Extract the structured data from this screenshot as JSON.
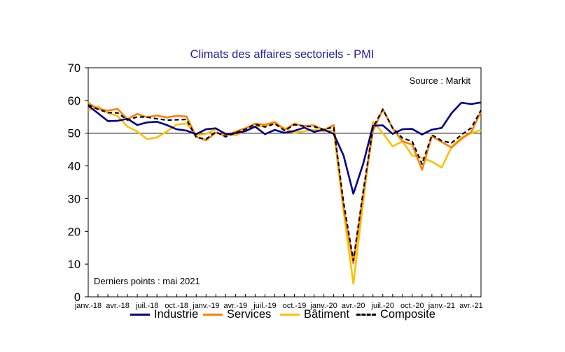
{
  "chart_data": {
    "type": "line",
    "title": "Climats des affaires sectoriels  - PMI",
    "source": "Source : Markit",
    "note": "Derniers points : mai 2021",
    "xlabel": "",
    "ylabel": "",
    "ylim": [
      0,
      70
    ],
    "yticks": [
      0,
      10,
      20,
      30,
      40,
      50,
      60,
      70
    ],
    "reference_line": 50,
    "x": [
      "janv.-18",
      "févr.-18",
      "mars-18",
      "avr.-18",
      "mai-18",
      "juin-18",
      "juil.-18",
      "août-18",
      "sept.-18",
      "oct.-18",
      "nov.-18",
      "déc.-18",
      "janv.-19",
      "févr.-19",
      "mars-19",
      "avr.-19",
      "mai-19",
      "juin-19",
      "juil.-19",
      "août-19",
      "sept.-19",
      "oct.-19",
      "nov.-19",
      "déc.-19",
      "janv.-20",
      "févr.-20",
      "mars-20",
      "avr.-20",
      "mai-20",
      "juin-20",
      "juil.-20",
      "août-20",
      "sept.-20",
      "oct.-20",
      "nov.-20",
      "déc.-20",
      "janv.-21",
      "févr.-21",
      "mars-21",
      "avr.-21",
      "mai-21"
    ],
    "tick_labels": [
      "janv.-18",
      "avr.-18",
      "juil.-18",
      "oct.-18",
      "janv.-19",
      "avr.-19",
      "juil.-19",
      "oct.-19",
      "janv.-20",
      "avr.-20",
      "juil.-20",
      "oct.-20",
      "janv.-21",
      "avr.-21"
    ],
    "series": [
      {
        "name": "Industrie",
        "color": "#00008b",
        "dash": "solid",
        "values": [
          58.4,
          56.1,
          53.7,
          53.8,
          54.4,
          52.5,
          53.3,
          53.5,
          52.5,
          51.2,
          50.8,
          49.7,
          51.2,
          51.5,
          49.7,
          50.0,
          50.6,
          52.0,
          49.7,
          51.0,
          50.1,
          50.7,
          51.7,
          50.4,
          51.1,
          49.8,
          43.2,
          31.5,
          40.6,
          52.3,
          52.4,
          49.8,
          51.2,
          51.3,
          49.6,
          51.1,
          51.6,
          56.1,
          59.3,
          58.9,
          59.4
        ]
      },
      {
        "name": "Services",
        "color": "#ff7f00",
        "dash": "solid",
        "values": [
          59.2,
          57.4,
          56.9,
          57.4,
          54.3,
          55.9,
          54.9,
          55.4,
          54.8,
          55.3,
          55.1,
          49.0,
          47.8,
          50.2,
          49.1,
          50.5,
          51.5,
          52.9,
          52.6,
          53.4,
          51.1,
          52.9,
          52.2,
          52.4,
          51.0,
          52.5,
          27.4,
          10.2,
          31.1,
          50.7,
          57.3,
          51.5,
          47.5,
          46.5,
          38.8,
          49.1,
          47.3,
          45.6,
          48.2,
          50.3,
          56.6
        ]
      },
      {
        "name": "Bâtiment",
        "color": "#ffc000",
        "dash": "solid",
        "values": [
          57.0,
          58.1,
          56.2,
          55.2,
          52.0,
          50.5,
          48.2,
          48.7,
          50.5,
          52.6,
          53.0,
          49.4,
          49.8,
          51.2,
          50.0,
          49.3,
          50.8,
          52.0,
          52.2,
          53.0,
          51.5,
          50.1,
          50.6,
          51.1,
          50.6,
          50.8,
          26.4,
          4.0,
          28.8,
          53.5,
          50.0,
          46.0,
          47.5,
          43.2,
          42.5,
          41.3,
          39.5,
          45.8,
          48.7,
          50.0,
          51.0
        ]
      },
      {
        "name": "Composite",
        "color": "#000000",
        "dash": "dashed",
        "values": [
          58.6,
          57.3,
          56.3,
          56.2,
          54.0,
          55.0,
          54.9,
          54.4,
          54.0,
          54.1,
          54.2,
          48.7,
          48.2,
          50.4,
          48.9,
          50.1,
          51.2,
          52.7,
          51.9,
          52.9,
          50.8,
          52.6,
          52.1,
          52.0,
          51.1,
          51.9,
          28.9,
          11.1,
          32.1,
          51.7,
          57.3,
          51.6,
          48.5,
          47.5,
          40.6,
          49.5,
          47.7,
          47.0,
          49.5,
          51.6,
          57.0
        ]
      }
    ],
    "legend_position": "bottom"
  }
}
